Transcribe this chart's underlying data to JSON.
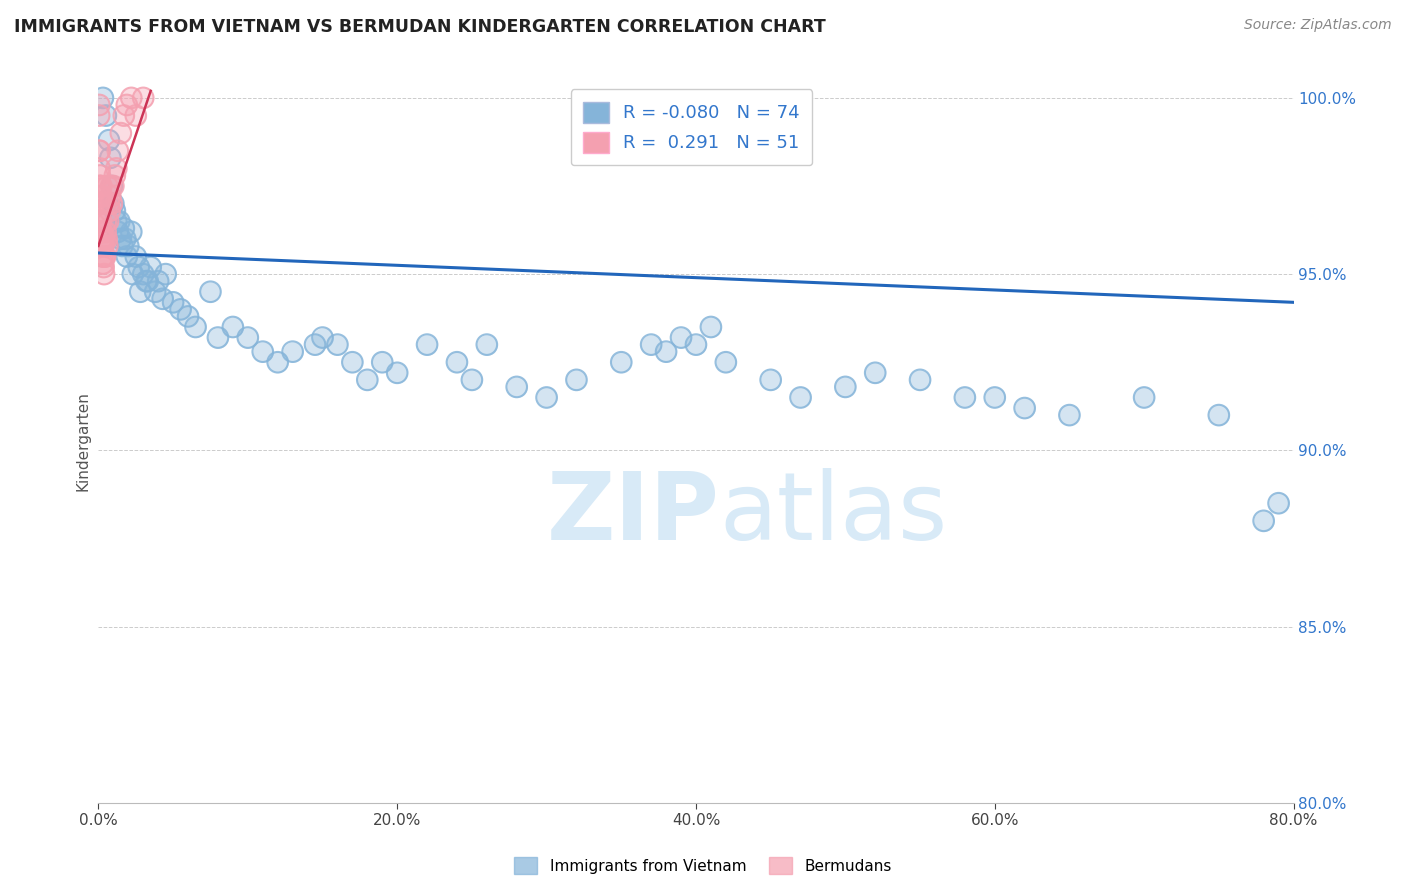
{
  "title": "IMMIGRANTS FROM VIETNAM VS BERMUDAN KINDERGARTEN CORRELATION CHART",
  "source": "Source: ZipAtlas.com",
  "xlabel_label": "Immigrants from Vietnam",
  "ylabel_label": "Kindergarten",
  "legend_label1": "Immigrants from Vietnam",
  "legend_label2": "Bermudans",
  "R1": -0.08,
  "N1": 74,
  "R2": 0.291,
  "N2": 51,
  "xlim": [
    0.0,
    80.0
  ],
  "ylim": [
    80.0,
    100.5
  ],
  "xticks": [
    0.0,
    20.0,
    40.0,
    60.0,
    80.0
  ],
  "yticks": [
    80.0,
    85.0,
    90.0,
    95.0,
    100.0
  ],
  "color_blue": "#85B4D9",
  "color_pink": "#F4A0B0",
  "color_blue_line": "#2266BB",
  "color_pink_line": "#CC3355",
  "blue_x": [
    0.3,
    0.5,
    0.7,
    0.8,
    0.9,
    1.0,
    1.1,
    1.2,
    1.3,
    1.4,
    1.5,
    1.6,
    1.7,
    1.8,
    1.9,
    2.0,
    2.2,
    2.3,
    2.5,
    2.7,
    3.0,
    3.2,
    3.5,
    3.8,
    4.0,
    4.3,
    4.5,
    5.0,
    5.5,
    6.0,
    6.5,
    7.5,
    8.0,
    9.0,
    10.0,
    11.0,
    12.0,
    13.0,
    14.5,
    15.0,
    16.0,
    17.0,
    18.0,
    19.0,
    20.0,
    22.0,
    24.0,
    25.0,
    26.0,
    28.0,
    30.0,
    32.0,
    35.0,
    37.0,
    38.0,
    39.0,
    40.0,
    41.0,
    42.0,
    45.0,
    47.0,
    50.0,
    52.0,
    55.0,
    58.0,
    60.0,
    62.0,
    65.0,
    70.0,
    75.0,
    78.0,
    79.0,
    2.8,
    3.3
  ],
  "blue_y": [
    100.0,
    99.5,
    98.8,
    98.3,
    97.5,
    97.0,
    96.8,
    96.5,
    96.2,
    96.5,
    96.0,
    95.8,
    96.3,
    96.0,
    95.5,
    95.8,
    96.2,
    95.0,
    95.5,
    95.2,
    95.0,
    94.8,
    95.2,
    94.5,
    94.8,
    94.3,
    95.0,
    94.2,
    94.0,
    93.8,
    93.5,
    94.5,
    93.2,
    93.5,
    93.2,
    92.8,
    92.5,
    92.8,
    93.0,
    93.2,
    93.0,
    92.5,
    92.0,
    92.5,
    92.2,
    93.0,
    92.5,
    92.0,
    93.0,
    91.8,
    91.5,
    92.0,
    92.5,
    93.0,
    92.8,
    93.2,
    93.0,
    93.5,
    92.5,
    92.0,
    91.5,
    91.8,
    92.2,
    92.0,
    91.5,
    91.5,
    91.2,
    91.0,
    91.5,
    91.0,
    88.0,
    88.5,
    94.5,
    94.8
  ],
  "pink_x": [
    0.05,
    0.07,
    0.08,
    0.09,
    0.1,
    0.11,
    0.12,
    0.13,
    0.15,
    0.17,
    0.18,
    0.2,
    0.22,
    0.25,
    0.28,
    0.3,
    0.33,
    0.35,
    0.38,
    0.4,
    0.42,
    0.45,
    0.48,
    0.5,
    0.55,
    0.6,
    0.65,
    0.7,
    0.75,
    0.8,
    0.85,
    0.9,
    1.0,
    1.1,
    1.2,
    1.3,
    1.5,
    1.7,
    1.9,
    2.2,
    2.5,
    3.0,
    0.06,
    0.15,
    0.2,
    0.25,
    0.08,
    0.1,
    0.3,
    0.5,
    0.6
  ],
  "pink_y": [
    99.5,
    98.5,
    98.0,
    97.5,
    97.8,
    97.2,
    97.0,
    96.8,
    96.5,
    96.2,
    96.5,
    96.0,
    95.8,
    96.2,
    95.5,
    95.3,
    95.8,
    95.2,
    95.0,
    95.5,
    96.0,
    95.5,
    96.2,
    96.5,
    96.0,
    95.8,
    96.5,
    97.0,
    96.8,
    97.2,
    97.5,
    97.0,
    97.5,
    97.8,
    98.0,
    98.5,
    99.0,
    99.5,
    99.8,
    100.0,
    99.5,
    100.0,
    99.8,
    97.0,
    97.5,
    97.2,
    98.5,
    97.5,
    96.0,
    97.0,
    97.5
  ],
  "blue_trend_x": [
    0.0,
    80.0
  ],
  "blue_trend_y": [
    95.6,
    94.2
  ],
  "pink_trend_x": [
    0.0,
    3.5
  ],
  "pink_trend_y": [
    95.8,
    100.2
  ],
  "background_color": "#FFFFFF",
  "watermark_color": "#D8EAF7"
}
